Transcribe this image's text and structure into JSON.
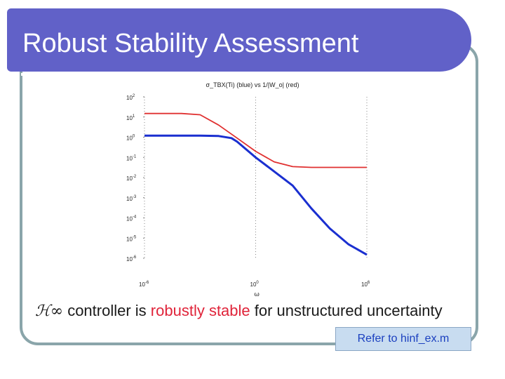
{
  "slide": {
    "title": "Robust Stability Assessment",
    "caption_symbol": "ℋ∞",
    "caption_part1": " controller is ",
    "caption_highlight": "robustly stable",
    "caption_part2": " for unstructured uncertainty",
    "reference": "Refer to hinf_ex.m"
  },
  "chart_data": {
    "type": "line",
    "title": "σ_TBX(Ti) (blue) vs 1/|W_o| (red)",
    "xlabel": "ω",
    "xscale": "log",
    "yscale": "log",
    "xlim": [
      1e-06,
      1000000.0
    ],
    "ylim": [
      1e-06,
      100
    ],
    "xticks": [
      {
        "v": 1e-06,
        "b": "10",
        "e": "-6"
      },
      {
        "v": 1,
        "b": "10",
        "e": "0"
      },
      {
        "v": 1000000.0,
        "b": "10",
        "e": "6"
      }
    ],
    "yticks": [
      {
        "v": 100,
        "b": "10",
        "e": "2"
      },
      {
        "v": 10,
        "b": "10",
        "e": "1"
      },
      {
        "v": 1,
        "b": "10",
        "e": "0"
      },
      {
        "v": 0.1,
        "b": "10",
        "e": "-1"
      },
      {
        "v": 0.01,
        "b": "10",
        "e": "-2"
      },
      {
        "v": 0.001,
        "b": "10",
        "e": "-3"
      },
      {
        "v": 0.0001,
        "b": "10",
        "e": "-4"
      },
      {
        "v": 1e-05,
        "b": "10",
        "e": "-5"
      },
      {
        "v": 1e-06,
        "b": "10",
        "e": "-6"
      }
    ],
    "series": [
      {
        "color": "#e03030",
        "points": [
          [
            1e-06,
            15
          ],
          [
            0.0001,
            15
          ],
          [
            0.001,
            13
          ],
          [
            0.01,
            4
          ],
          [
            0.1,
            0.9
          ],
          [
            1,
            0.2
          ],
          [
            10,
            0.06
          ],
          [
            100,
            0.035
          ],
          [
            1000,
            0.032
          ],
          [
            1000000.0,
            0.032
          ]
        ]
      },
      {
        "color": "#1a2fd0",
        "points": [
          [
            1e-06,
            1.2
          ],
          [
            0.001,
            1.2
          ],
          [
            0.01,
            1.15
          ],
          [
            0.05,
            0.9
          ],
          [
            0.1,
            0.6
          ],
          [
            1,
            0.1
          ],
          [
            10,
            0.02
          ],
          [
            100,
            0.004
          ],
          [
            1000,
            0.0003
          ],
          [
            10000,
            3e-05
          ],
          [
            100000,
            5e-06
          ],
          [
            1000000.0,
            1.5e-06
          ]
        ]
      }
    ]
  }
}
